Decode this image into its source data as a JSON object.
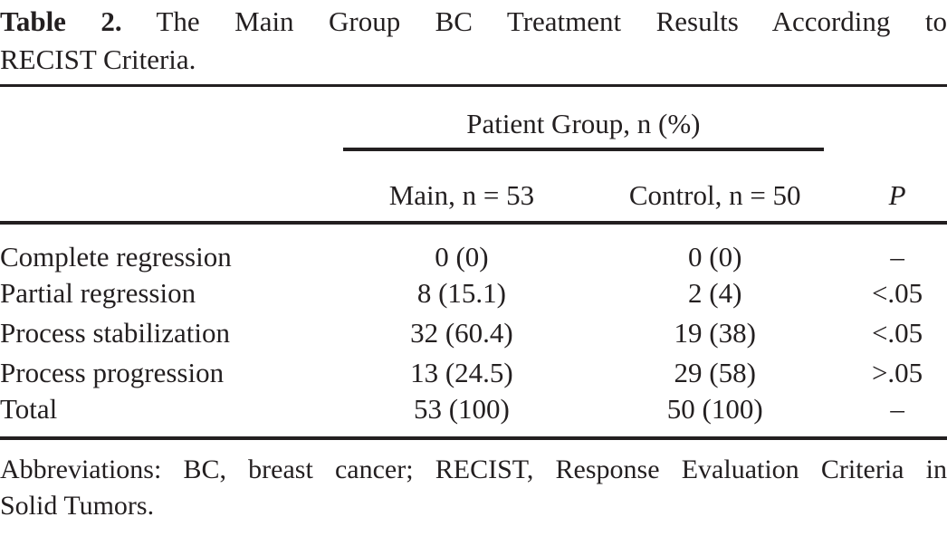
{
  "caption": {
    "label": "Table 2.",
    "line1": "The Main Group BC Treatment Results According to",
    "line2": "RECIST Criteria."
  },
  "table": {
    "spanner_header": "Patient Group, n (%)",
    "columns": {
      "main": "Main, n = 53",
      "control": "Control, n = 50",
      "p": "P"
    },
    "rows": [
      {
        "label": "Complete regression",
        "main": "0 (0)",
        "control": "0 (0)",
        "p": "–"
      },
      {
        "label": "Partial regression",
        "main": "8 (15.1)",
        "control": "2 (4)",
        "p": "<.05"
      },
      {
        "label": "Process stabilization",
        "main": "32 (60.4)",
        "control": "19 (38)",
        "p": "<.05"
      },
      {
        "label": "Process progression",
        "main": "13 (24.5)",
        "control": "29 (58)",
        "p": ">.05"
      },
      {
        "label": "Total",
        "main": "53 (100)",
        "control": "50 (100)",
        "p": "–"
      }
    ]
  },
  "footnote": {
    "line1": "Abbreviations: BC, breast cancer; RECIST, Response Evaluation Criteria in",
    "line2": "Solid Tumors."
  },
  "colors": {
    "text": "#231f20",
    "rule": "#231f20",
    "background": "#ffffff"
  }
}
